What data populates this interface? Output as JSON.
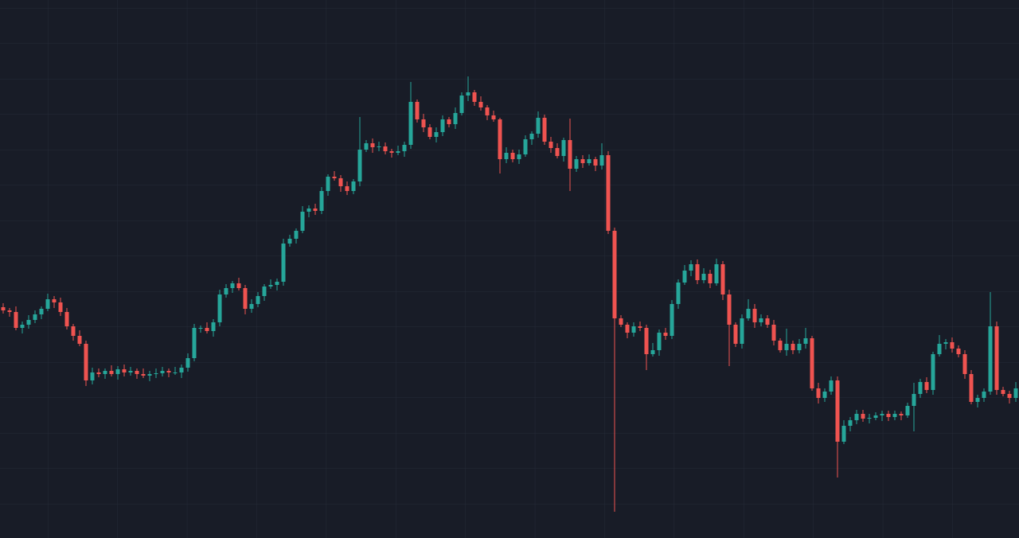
{
  "chart_data": {
    "type": "candlestick",
    "up_color": "#26a69a",
    "down_color": "#ef5350",
    "ylim": [
      0,
      676
    ],
    "open": [
      290,
      286,
      284,
      264,
      268,
      274,
      281,
      288,
      300,
      296,
      284,
      266,
      254,
      244,
      198,
      208,
      206,
      210,
      206,
      212,
      208,
      210,
      206,
      204,
      206,
      207,
      210,
      208,
      208,
      214,
      226,
      264,
      264,
      260,
      271,
      306,
      314,
      320,
      314,
      288,
      294,
      304,
      316,
      318,
      322,
      370,
      376,
      386,
      410,
      414,
      411,
      436,
      454,
      452,
      442,
      436,
      448,
      488,
      496,
      491,
      492,
      486,
      484,
      486,
      494,
      548,
      526,
      516,
      504,
      510,
      526,
      520,
      534,
      556,
      560,
      548,
      541,
      531,
      526,
      476,
      484,
      476,
      482,
      501,
      508,
      528,
      498,
      490,
      480,
      500,
      464,
      476,
      471,
      476,
      468,
      481,
      386,
      276,
      268,
      258,
      266,
      264,
      231,
      236,
      258,
      254,
      294,
      321,
      336,
      344,
      324,
      332,
      320,
      344,
      306,
      268,
      244,
      276,
      288,
      271,
      276,
      268,
      248,
      236,
      244,
      236,
      244,
      251,
      188,
      176,
      184,
      198,
      121,
      141,
      148,
      156,
      150,
      151,
      154,
      156,
      152,
      156,
      154,
      166,
      181,
      196,
      186,
      231,
      244,
      246,
      238,
      231,
      206,
      171,
      176,
      184,
      266,
      186,
      181,
      176
    ],
    "high": [
      295,
      289,
      291,
      272,
      280,
      286,
      291,
      307,
      304,
      302,
      289,
      269,
      261,
      248,
      214,
      213,
      213,
      217,
      216,
      218,
      215,
      213,
      213,
      210,
      213,
      215,
      213,
      215,
      218,
      232,
      269,
      267,
      271,
      275,
      312,
      319,
      323,
      327,
      318,
      300,
      309,
      319,
      325,
      326,
      376,
      381,
      389,
      417,
      418,
      420,
      441,
      457,
      461,
      456,
      448,
      451,
      529,
      500,
      502,
      498,
      497,
      489,
      493,
      498,
      573,
      551,
      533,
      520,
      516,
      531,
      529,
      541,
      560,
      580,
      563,
      555,
      544,
      537,
      528,
      491,
      488,
      488,
      506,
      511,
      536,
      532,
      504,
      496,
      503,
      527,
      480,
      481,
      482,
      479,
      496,
      486,
      390,
      280,
      271,
      271,
      272,
      268,
      245,
      262,
      264,
      299,
      325,
      343,
      349,
      350,
      339,
      337,
      351,
      348,
      312,
      271,
      281,
      300,
      294,
      281,
      280,
      274,
      251,
      263,
      248,
      250,
      264,
      254,
      195,
      188,
      203,
      203,
      148,
      152,
      161,
      161,
      156,
      158,
      160,
      160,
      160,
      159,
      170,
      195,
      200,
      202,
      234,
      255,
      250,
      252,
      242,
      236,
      211,
      180,
      188,
      309,
      272,
      190,
      185,
      196
    ],
    "low": [
      282,
      278,
      261,
      257,
      263,
      270,
      275,
      285,
      289,
      279,
      262,
      248,
      241,
      191,
      193,
      202,
      200,
      203,
      199,
      203,
      204,
      200,
      201,
      197,
      201,
      203,
      202,
      205,
      201,
      209,
      222,
      258,
      257,
      253,
      266,
      302,
      308,
      311,
      281,
      283,
      290,
      298,
      313,
      311,
      317,
      366,
      370,
      383,
      403,
      406,
      407,
      430,
      449,
      435,
      431,
      432,
      442,
      485,
      484,
      486,
      482,
      478,
      481,
      479,
      489,
      522,
      510,
      501,
      497,
      505,
      516,
      514,
      531,
      549,
      543,
      537,
      525,
      523,
      458,
      471,
      472,
      470,
      479,
      494,
      503,
      494,
      484,
      477,
      473,
      436,
      460,
      465,
      468,
      461,
      463,
      382,
      33,
      265,
      251,
      253,
      260,
      211,
      228,
      229,
      249,
      250,
      288,
      318,
      329,
      319,
      320,
      314,
      317,
      299,
      216,
      240,
      238,
      273,
      264,
      266,
      264,
      242,
      233,
      229,
      231,
      232,
      238,
      185,
      169,
      171,
      180,
      76,
      118,
      134,
      143,
      146,
      144,
      148,
      147,
      147,
      148,
      148,
      151,
      134,
      176,
      182,
      180,
      228,
      237,
      233,
      227,
      200,
      168,
      164,
      171,
      180,
      180,
      178,
      169,
      171
    ],
    "close": [
      286,
      284,
      264,
      268,
      274,
      281,
      288,
      300,
      296,
      284,
      266,
      254,
      244,
      198,
      208,
      206,
      210,
      206,
      212,
      208,
      210,
      206,
      204,
      206,
      207,
      210,
      208,
      208,
      214,
      226,
      264,
      264,
      260,
      271,
      306,
      314,
      320,
      314,
      288,
      294,
      304,
      316,
      318,
      322,
      370,
      376,
      386,
      410,
      414,
      411,
      436,
      454,
      452,
      442,
      436,
      448,
      488,
      496,
      491,
      492,
      486,
      484,
      486,
      494,
      548,
      526,
      516,
      504,
      510,
      526,
      520,
      534,
      556,
      560,
      548,
      541,
      531,
      526,
      476,
      484,
      476,
      482,
      501,
      508,
      528,
      498,
      490,
      480,
      500,
      464,
      476,
      471,
      476,
      468,
      481,
      386,
      276,
      268,
      258,
      266,
      264,
      231,
      236,
      258,
      254,
      294,
      321,
      336,
      344,
      324,
      332,
      320,
      344,
      306,
      268,
      244,
      276,
      288,
      271,
      276,
      268,
      248,
      236,
      244,
      236,
      244,
      251,
      188,
      176,
      184,
      198,
      121,
      141,
      148,
      156,
      150,
      151,
      154,
      156,
      152,
      156,
      154,
      166,
      181,
      196,
      186,
      231,
      244,
      246,
      238,
      231,
      206,
      171,
      176,
      184,
      266,
      186,
      181,
      176,
      188
    ]
  }
}
